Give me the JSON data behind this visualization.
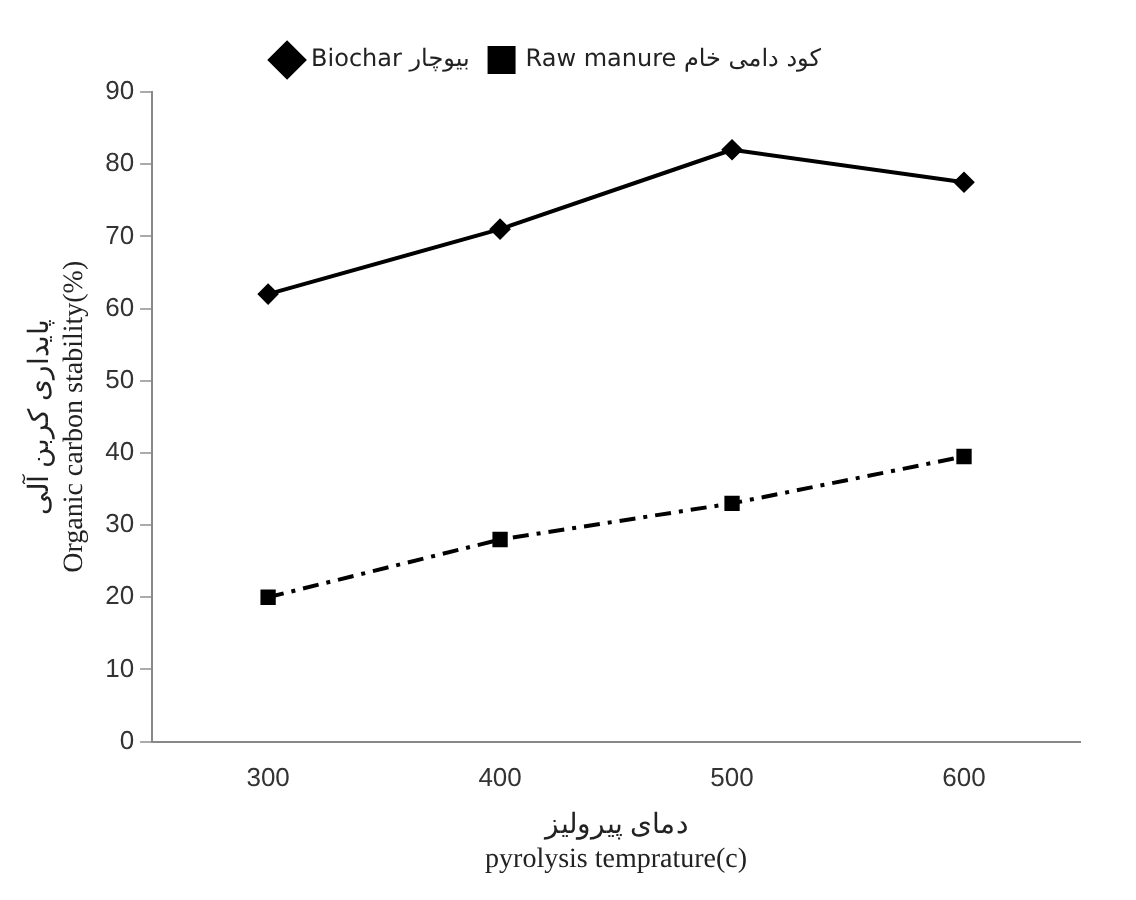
{
  "chart_data": {
    "type": "line",
    "categories": [
      "300",
      "400",
      "500",
      "600"
    ],
    "xlabel": "دمای پیرولیز\npyrolysis temprature(c)",
    "ylabel": "پایداری کربن آلی\nOrganic carbon stability(%)",
    "ylim": [
      0,
      90
    ],
    "yticks": [
      0,
      10,
      20,
      30,
      40,
      50,
      60,
      70,
      80,
      90
    ],
    "grid": false,
    "legend": "top",
    "series": [
      {
        "name": "Biochar بیوچار",
        "color": "#000000",
        "marker": "diamond",
        "line_style": "solid",
        "values": [
          62,
          71,
          82,
          77.5
        ]
      },
      {
        "name": "Raw manure کود دامی خام",
        "color": "#000000",
        "marker": "square",
        "line_style": "dashed",
        "values": [
          20,
          28,
          33,
          39.5
        ]
      }
    ]
  }
}
